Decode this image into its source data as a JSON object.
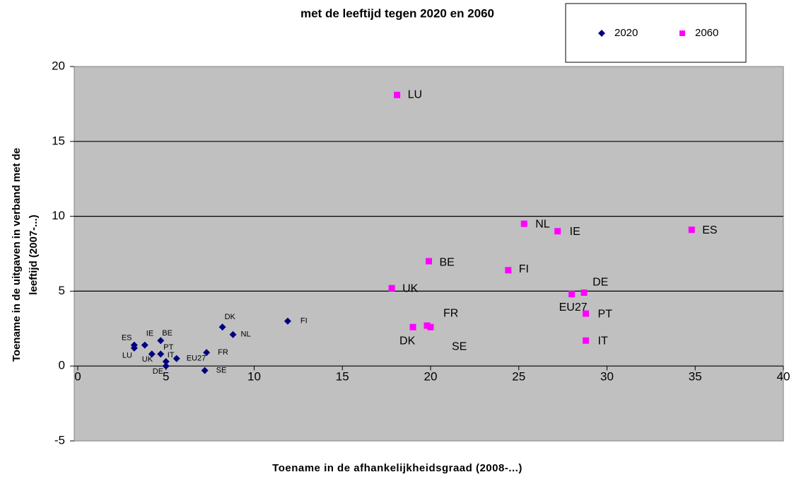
{
  "chart_data": {
    "type": "scatter",
    "title": "met de leeftijd tegen 2020 en 2060",
    "x_label": "Toename in de afhankelijkheidsgraad (2008-...)",
    "y_label": [
      "Toename in de uitgaven in verband met de",
      "leeftijd (2007-...)"
    ],
    "xlim": [
      0,
      40
    ],
    "xticks": [
      0,
      5,
      10,
      15,
      20,
      25,
      30,
      35,
      40
    ],
    "ylim": [
      -5,
      20
    ],
    "yticks": [
      -5,
      0,
      5,
      10,
      15,
      20
    ],
    "grid": true,
    "series": [
      {
        "name": "2020",
        "color": "#000080",
        "marker": "diamond",
        "point_labels": [
          "ES",
          "LU",
          "IE",
          "BE",
          "UK",
          "PT",
          "IT",
          "DE",
          "EU27",
          "FR",
          "SE",
          "DK",
          "NL",
          "FI"
        ],
        "x": [
          3.2,
          3.2,
          3.8,
          4.7,
          4.2,
          4.7,
          5.0,
          5.0,
          5.6,
          7.3,
          7.2,
          8.2,
          8.8,
          11.9
        ],
        "values": [
          1.4,
          1.2,
          1.4,
          1.7,
          0.8,
          0.8,
          0.3,
          0.0,
          0.5,
          0.9,
          -0.3,
          2.6,
          2.1,
          3.0
        ]
      },
      {
        "name": "2060",
        "color": "#ff00ff",
        "marker": "square",
        "point_labels": [
          "LU",
          "NL",
          "IE",
          "ES",
          "BE",
          "FI",
          "UK",
          "DE",
          "EU27",
          "PT",
          "IT",
          "DK",
          "FR",
          "SE"
        ],
        "x": [
          18.1,
          25.3,
          27.2,
          34.8,
          19.9,
          24.4,
          17.8,
          28.7,
          28.0,
          28.8,
          28.8,
          19.0,
          19.8,
          20.0
        ],
        "values": [
          18.1,
          9.5,
          9.0,
          9.1,
          7.0,
          6.4,
          5.2,
          4.9,
          4.8,
          3.5,
          1.7,
          2.6,
          2.7,
          2.6
        ]
      }
    ]
  }
}
